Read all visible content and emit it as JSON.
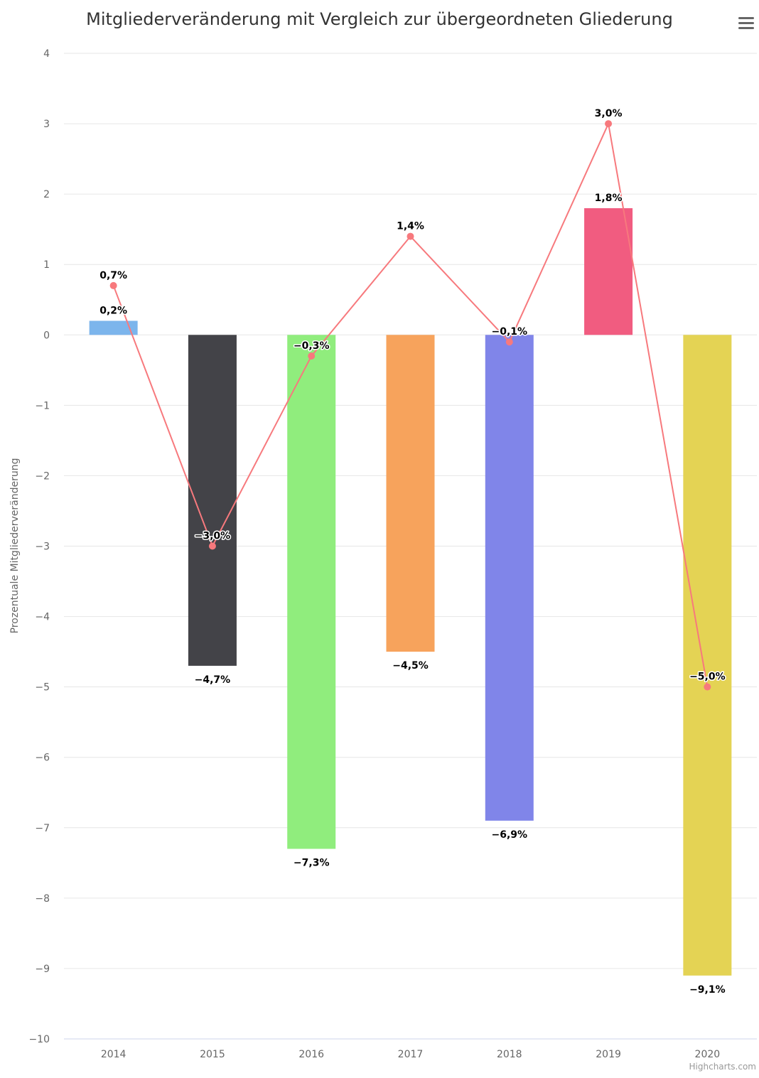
{
  "chart_data": {
    "type": "bar",
    "title": "Mitgliederveränderung mit Vergleich zur übergeordneten Gliederung",
    "ylabel": "Prozentuale Mitgliederveränderung",
    "xlabel": "",
    "ylim": [
      -10,
      4
    ],
    "yticks": [
      4,
      3,
      2,
      1,
      0,
      -1,
      -2,
      -3,
      -4,
      -5,
      -6,
      -7,
      -8,
      -9,
      -10
    ],
    "ytick_labels": [
      "4",
      "3",
      "2",
      "1",
      "0",
      "−1",
      "−2",
      "−3",
      "−4",
      "−5",
      "−6",
      "−7",
      "−8",
      "−9",
      "−10"
    ],
    "grid": true,
    "categories": [
      "2014",
      "2015",
      "2016",
      "2017",
      "2018",
      "2019",
      "2020"
    ],
    "series": [
      {
        "type": "column",
        "values": [
          0.2,
          -4.7,
          -7.3,
          -4.5,
          -6.9,
          1.8,
          -9.1
        ],
        "labels": [
          "0,2%",
          "−4,7%",
          "−7,3%",
          "−4,5%",
          "−6,9%",
          "1,8%",
          "−9,1%"
        ],
        "colors": [
          "#7cb5ec",
          "#434348",
          "#90ed7d",
          "#f7a35c",
          "#8085e9",
          "#f15c80",
          "#e4d354"
        ]
      },
      {
        "type": "line",
        "values": [
          0.7,
          -3.0,
          -0.3,
          1.4,
          -0.1,
          3.0,
          -5.0
        ],
        "labels": [
          "0,7%",
          "−3,0%",
          "−0,3%",
          "1,4%",
          "−0,1%",
          "3,0%",
          "−5,0%"
        ],
        "color": "#f7797d"
      }
    ]
  },
  "credits": "Highcharts.com",
  "menu_icon": "hamburger-menu-icon"
}
